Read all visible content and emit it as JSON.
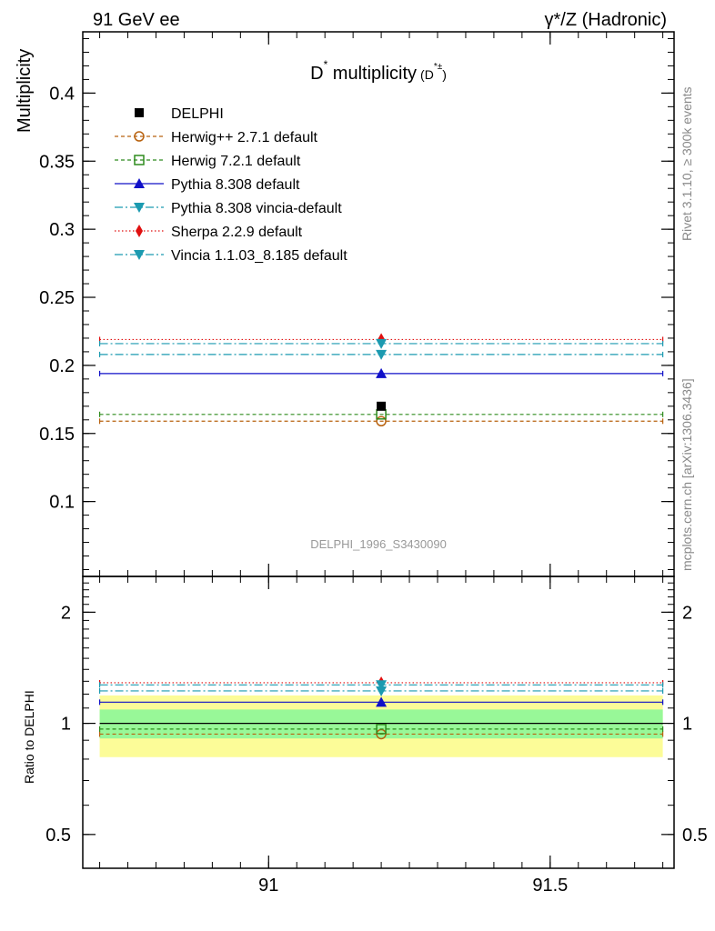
{
  "header": {
    "left": "91 GeV ee",
    "right": "γ*/Z (Hadronic)"
  },
  "side_labels": {
    "rivet": "Rivet 3.1.10, ≥ 300k events",
    "mcplots": "mcplots.cern.ch [arXiv:1306.3436]"
  },
  "chart_data": [
    {
      "type": "line",
      "title_main": "D",
      "title_sup": "*",
      "title_rest": " multiplicity",
      "title_paren_open": "(D",
      "title_paren_sup": "*±",
      "title_paren_close": ")",
      "ylabel": "Multiplicity",
      "analysis_id": "DELPHI_1996_S3430090",
      "xlim": [
        90.67,
        91.72
      ],
      "ylim": [
        0.045,
        0.445
      ],
      "yticks": [
        0.1,
        0.15,
        0.2,
        0.25,
        0.3,
        0.35,
        0.4
      ],
      "ytick_labels": [
        "0.1",
        "0.15",
        "0.2",
        "0.25",
        "0.3",
        "0.35",
        "0.4"
      ],
      "x_range_mc": [
        90.7,
        91.7
      ],
      "x_center": 91.2,
      "data": {
        "name": "DELPHI",
        "x": 91.2,
        "y": 0.17,
        "color": "#000000"
      },
      "series": [
        {
          "name": "Herwig++ 2.7.1 default",
          "value": 0.159,
          "color": "#b8620f",
          "dash": "4,3",
          "marker": "circle-open"
        },
        {
          "name": "Herwig 7.2.1 default",
          "value": 0.164,
          "color": "#2e8b1d",
          "dash": "4,3",
          "marker": "square-open"
        },
        {
          "name": "Pythia 8.308 default",
          "value": 0.194,
          "color": "#1010c8",
          "dash": "",
          "marker": "triangle-up"
        },
        {
          "name": "Pythia 8.308 vincia-default",
          "value": 0.208,
          "color": "#1b9ab0",
          "dash": "9,3,2,3",
          "marker": "triangle-down"
        },
        {
          "name": "Sherpa 2.2.9 default",
          "value": 0.219,
          "color": "#e01010",
          "dash": "1.5,2.5",
          "marker": "diamond"
        },
        {
          "name": "Vincia 1.1.03_8.185 default",
          "value": 0.216,
          "color": "#1b9ab0",
          "dash": "9,3,2,3",
          "marker": "triangle-down"
        }
      ]
    },
    {
      "type": "line",
      "ylabel": "Ratio to DELPHI",
      "scale": "log",
      "ylim": [
        0.405,
        2.5
      ],
      "yticks": [
        0.5,
        1,
        2
      ],
      "ytick_labels": [
        "0.5",
        "1",
        "2"
      ],
      "xticks": [
        91,
        91.5
      ],
      "xtick_labels": [
        "91",
        "91.5"
      ],
      "band_stat": [
        0.91,
        1.09
      ],
      "band_total": [
        0.81,
        1.19
      ],
      "band_stat_color": "#98f898",
      "band_total_color": "#fcfc98",
      "ratios": [
        0.935,
        0.965,
        1.141,
        1.224,
        1.288,
        1.271
      ]
    }
  ]
}
